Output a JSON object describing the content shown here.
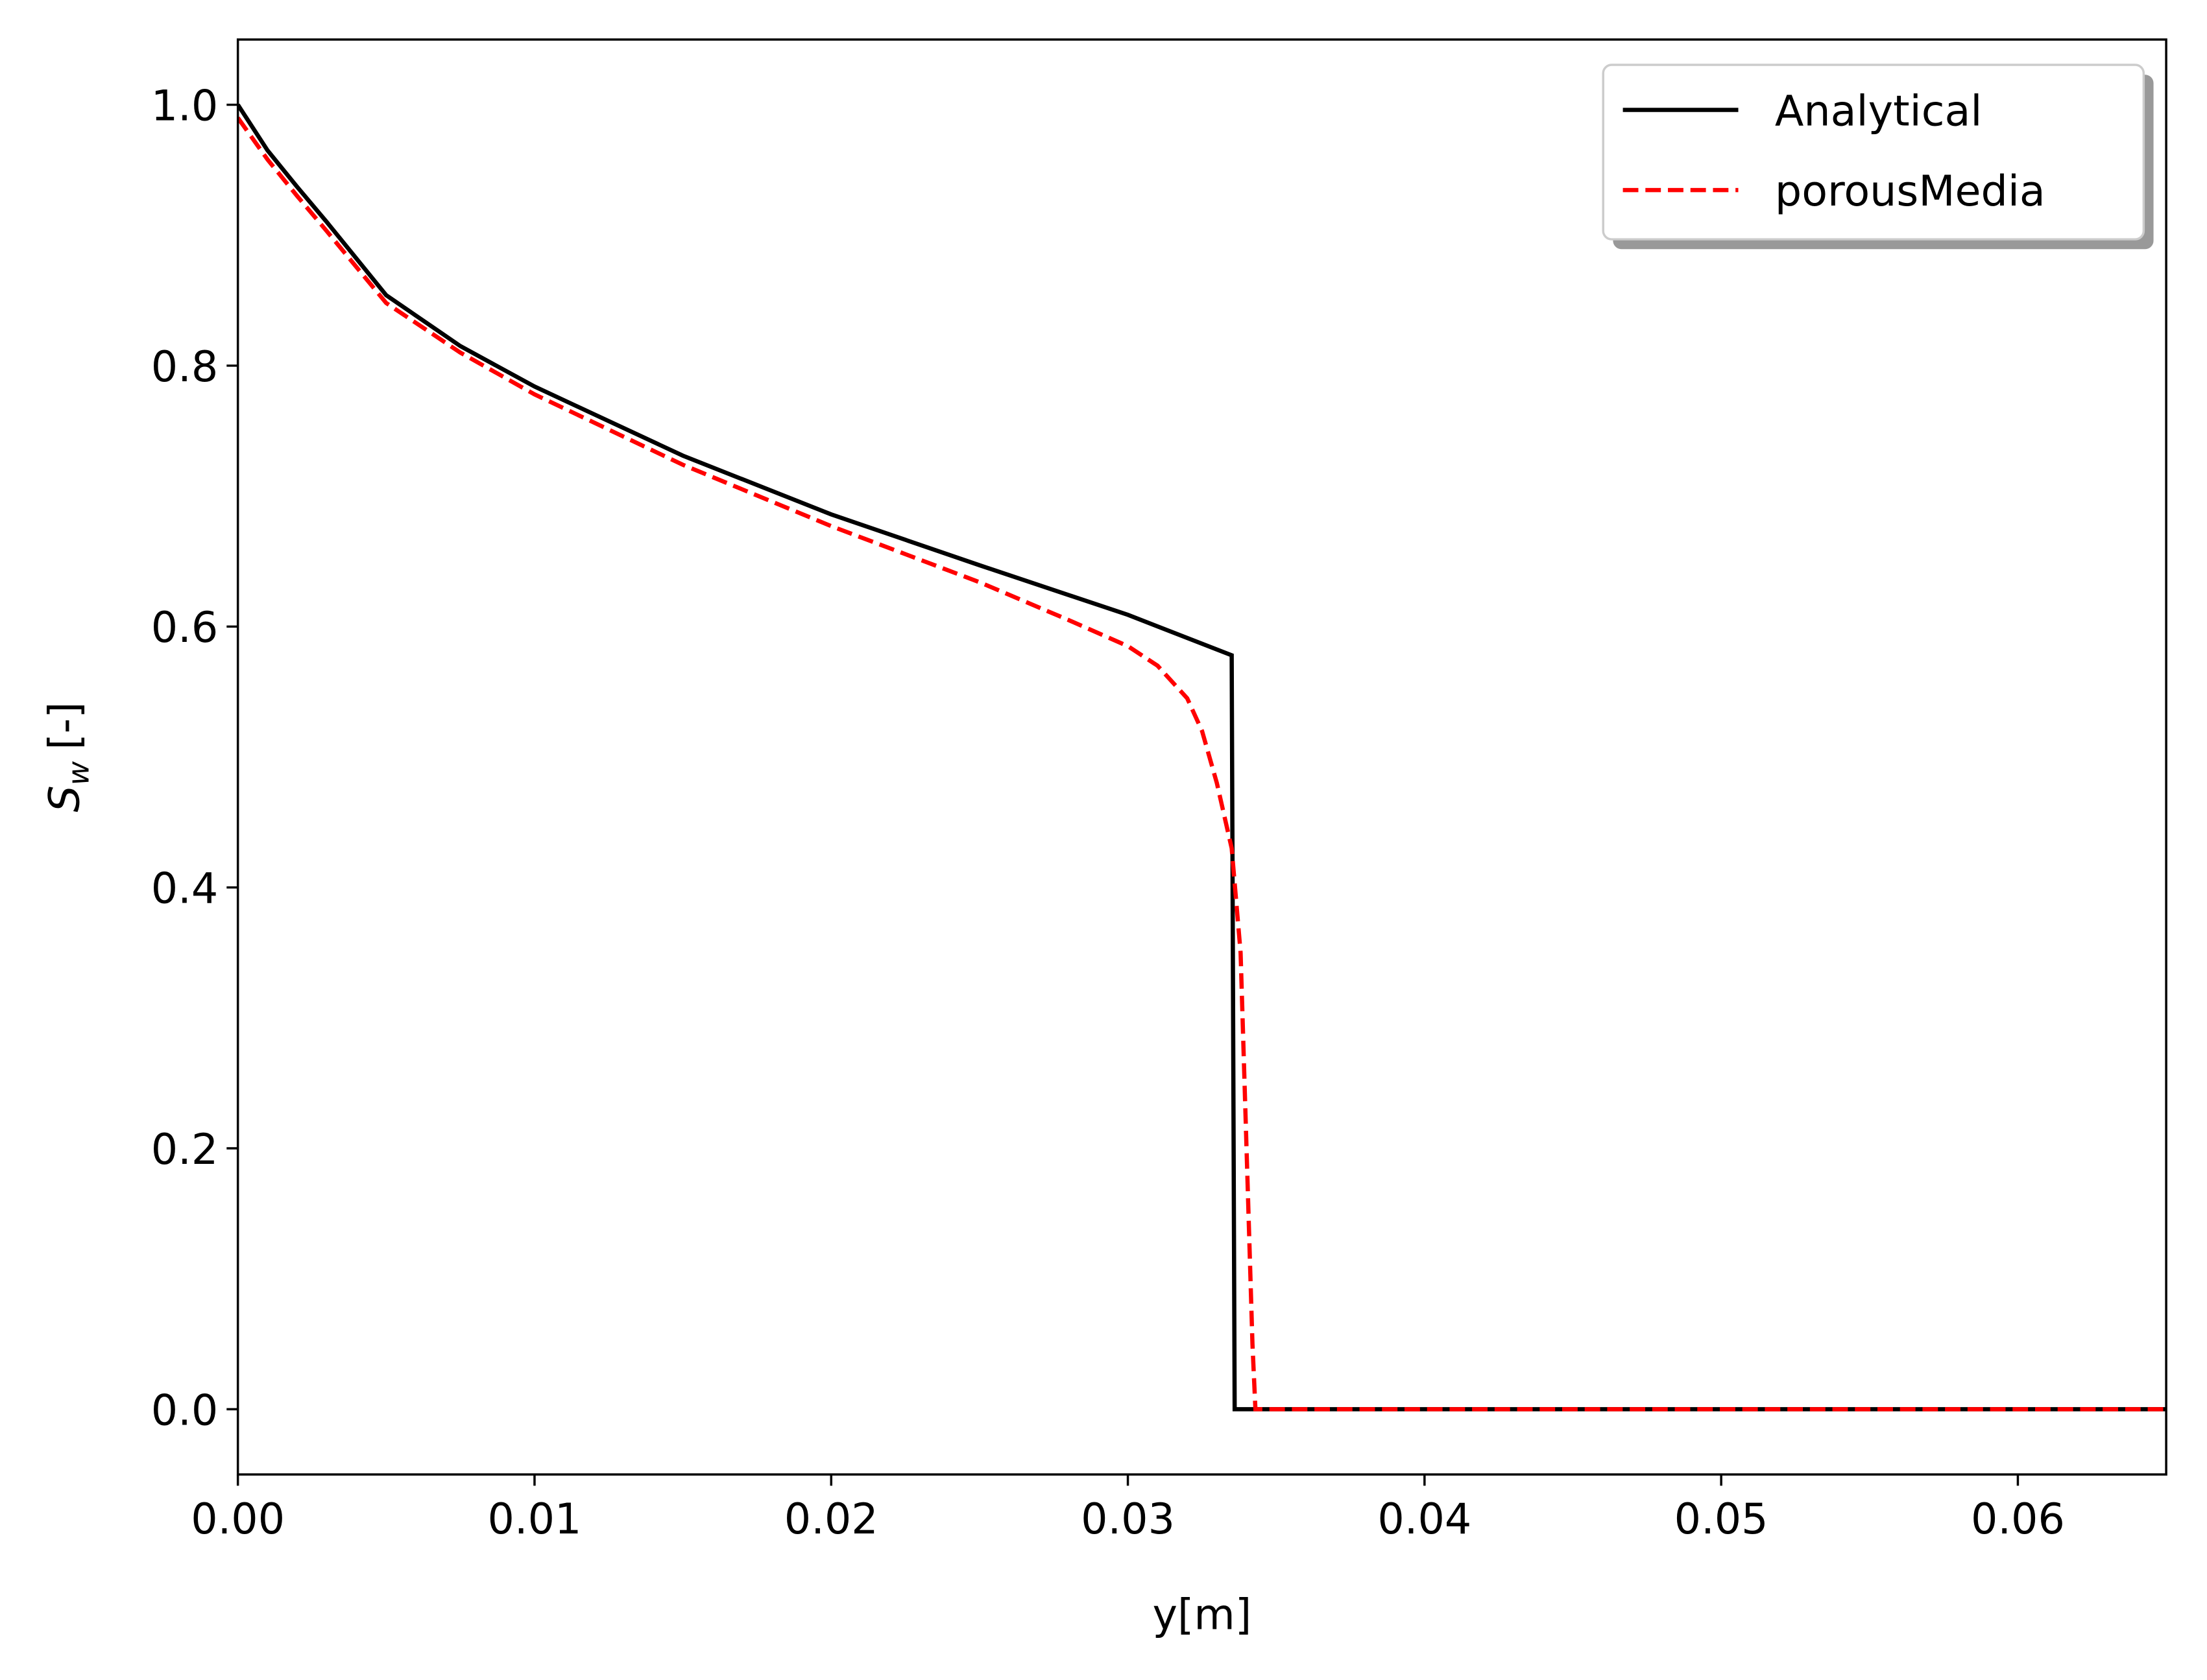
{
  "chart_data": {
    "type": "line",
    "xlabel": "y[m]",
    "ylabel_symbol": "S",
    "ylabel_subscript": "w",
    "ylabel_unit": "[-]",
    "xlim": [
      0,
      0.065
    ],
    "ylim": [
      -0.05,
      1.05
    ],
    "xticks": [
      {
        "value": 0,
        "label": "0.00"
      },
      0.01,
      0.02,
      0.03,
      0.04,
      0.05,
      0.06
    ],
    "yticks": [
      {
        "value": 0,
        "label": "0.0"
      },
      0.2,
      0.4,
      0.6,
      0.8,
      {
        "value": 1,
        "label": "1.0"
      }
    ],
    "legend": "upper right",
    "series": [
      {
        "name": "Analytical",
        "color": "#000000",
        "linestyle": "solid",
        "x": [
          0,
          0.001,
          0.002,
          0.003,
          0.005,
          0.0075,
          0.01,
          0.015,
          0.02,
          0.025,
          0.03,
          0.0335,
          0.0336,
          0.065
        ],
        "values": [
          1.0,
          0.965,
          0.937,
          0.91,
          0.854,
          0.815,
          0.784,
          0.731,
          0.686,
          0.647,
          0.609,
          0.578,
          0,
          0
        ]
      },
      {
        "name": "porousMedia",
        "color": "#ff0000",
        "linestyle": "dashed",
        "x": [
          0,
          0.001,
          0.002,
          0.003,
          0.005,
          0.0075,
          0.01,
          0.015,
          0.02,
          0.025,
          0.028,
          0.03,
          0.031,
          0.032,
          0.0325,
          0.033,
          0.0335,
          0.0338,
          0.034,
          0.0342,
          0.0343,
          0.065
        ],
        "values": [
          0.99,
          0.958,
          0.93,
          0.903,
          0.848,
          0.81,
          0.778,
          0.724,
          0.677,
          0.634,
          0.605,
          0.585,
          0.57,
          0.545,
          0.52,
          0.48,
          0.43,
          0.35,
          0.2,
          0.05,
          0,
          0
        ]
      }
    ]
  }
}
